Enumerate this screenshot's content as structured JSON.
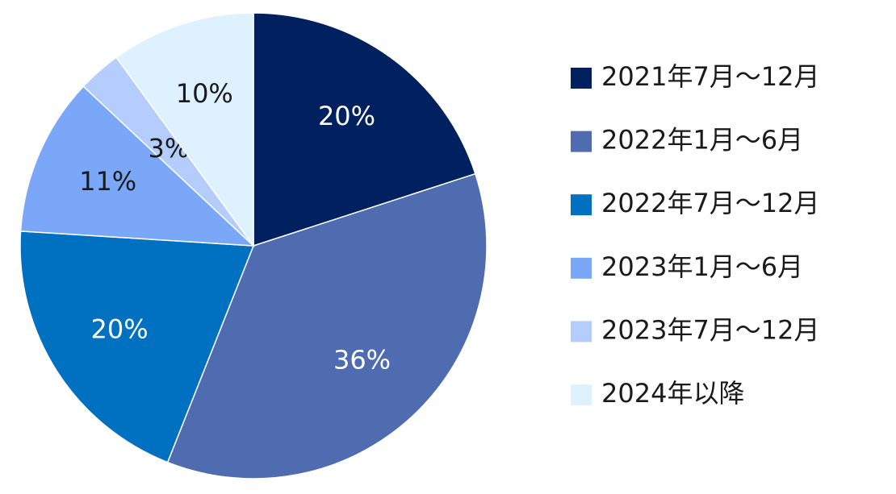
{
  "chart_data": {
    "type": "pie",
    "categories": [
      "2021年7月～12月",
      "2022年1月～6月",
      "2022年7月～12月",
      "2023年1月～6月",
      "2023年7月～12月",
      "2024年以降"
    ],
    "values": [
      20,
      36,
      20,
      11,
      3,
      10
    ],
    "value_labels": [
      "20%",
      "36%",
      "20%",
      "11%",
      "3%",
      "10%"
    ],
    "colors": [
      "#002060",
      "#4f6cb0",
      "#0070c0",
      "#7aa7f7",
      "#b4cdfc",
      "#ddf1fe"
    ],
    "label_colors": [
      "#ffffff",
      "#ffffff",
      "#ffffff",
      "#1a1a1a",
      "#1a1a1a",
      "#1a1a1a"
    ],
    "legend": "right"
  }
}
